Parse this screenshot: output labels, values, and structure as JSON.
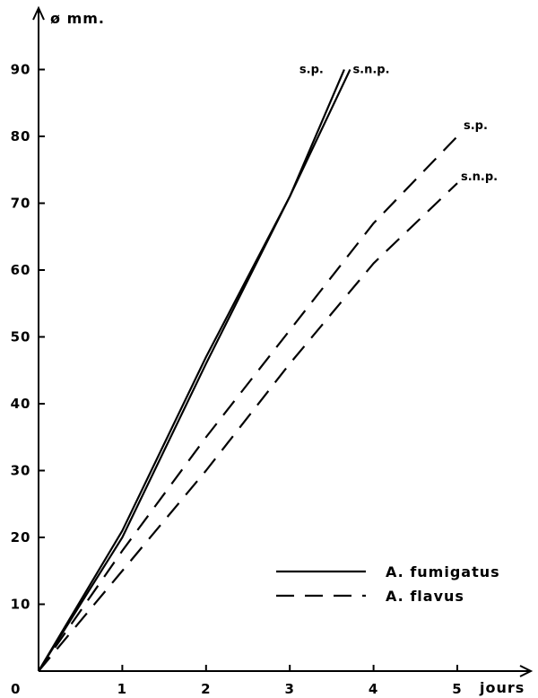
{
  "chart_data": {
    "type": "line",
    "title": "",
    "ylabel": "ø mm.",
    "xlabel": "jours",
    "xlim": [
      0,
      6
    ],
    "ylim": [
      0,
      98
    ],
    "x_ticks": [
      0,
      1,
      2,
      3,
      4,
      5
    ],
    "y_ticks": [
      10,
      20,
      30,
      40,
      50,
      60,
      70,
      80,
      90
    ],
    "origin_label": "0",
    "series": [
      {
        "name": "A. fumigatus",
        "end_label": "s.p.",
        "style": "solid",
        "x": [
          0,
          1,
          2,
          3,
          3.65
        ],
        "y": [
          0,
          21,
          47,
          71,
          90
        ]
      },
      {
        "name": "A. fumigatus",
        "end_label": "s.n.p.",
        "style": "solid",
        "x": [
          0,
          1,
          2,
          3,
          3.72
        ],
        "y": [
          0,
          20,
          46,
          71,
          90
        ]
      },
      {
        "name": "A. flavus",
        "end_label": "s.p.",
        "style": "dashed",
        "x": [
          0,
          1,
          2,
          3,
          4,
          5
        ],
        "y": [
          0,
          18,
          35,
          51,
          67,
          80
        ]
      },
      {
        "name": "A. flavus",
        "end_label": "s.n.p.",
        "style": "dashed",
        "x": [
          0,
          1,
          2,
          3,
          4,
          5
        ],
        "y": [
          0,
          15,
          30,
          46,
          61,
          73
        ]
      }
    ],
    "legend": {
      "placement": "bottom-right",
      "entries": [
        {
          "label": "A. fumigatus",
          "style": "solid"
        },
        {
          "label": "A. flavus",
          "style": "dashed"
        }
      ]
    },
    "grid": false,
    "colors": {
      "line": "#000000",
      "background": "#ffffff"
    }
  }
}
